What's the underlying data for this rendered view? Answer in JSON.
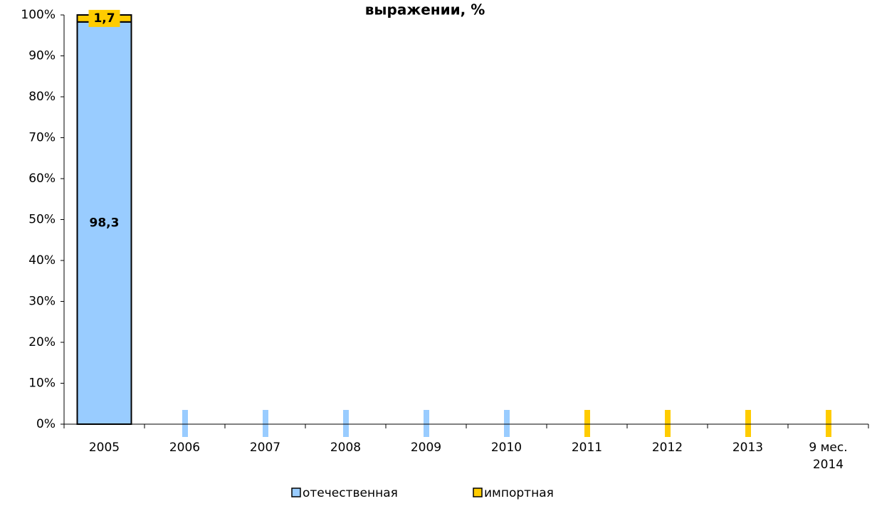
{
  "chart_data": {
    "type": "stacked_bar",
    "title": "выражении, %",
    "categories": [
      "2005",
      "2006",
      "2007",
      "2008",
      "2009",
      "2010",
      "2011",
      "2012",
      "2013",
      "9 мес. 2014"
    ],
    "series": [
      {
        "name": "отечественная",
        "color": "#99ccff",
        "values": [
          98.3,
          null,
          null,
          null,
          null,
          null,
          null,
          null,
          null,
          null
        ],
        "value_labels": [
          "98,3",
          null,
          null,
          null,
          null,
          null,
          null,
          null,
          null,
          null
        ]
      },
      {
        "name": "импортная",
        "color": "#ffcc00",
        "values": [
          1.7,
          null,
          null,
          null,
          null,
          null,
          null,
          null,
          null,
          null
        ],
        "value_labels": [
          "1,7",
          null,
          null,
          null,
          null,
          null,
          null,
          null,
          null,
          null
        ]
      }
    ],
    "ylim": [
      0,
      100
    ],
    "yticks": [
      {
        "value": 0,
        "label": "0%"
      },
      {
        "value": 10,
        "label": "10%"
      },
      {
        "value": 20,
        "label": "20%"
      },
      {
        "value": 30,
        "label": "30%"
      },
      {
        "value": 40,
        "label": "40%"
      },
      {
        "value": 50,
        "label": "50%"
      },
      {
        "value": 60,
        "label": "60%"
      },
      {
        "value": 70,
        "label": "70%"
      },
      {
        "value": 80,
        "label": "80%"
      },
      {
        "value": 90,
        "label": "90%"
      },
      {
        "value": 100,
        "label": "100%"
      }
    ],
    "legend": "bottom"
  }
}
